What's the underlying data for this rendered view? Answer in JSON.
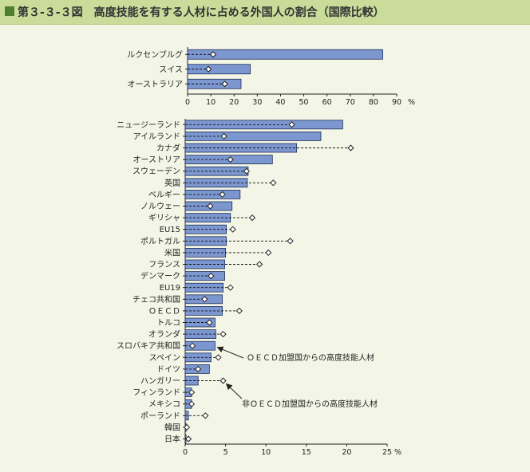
{
  "header": {
    "title": "第３-３-３図　高度技能を有する人材に占める外国人の割合（国際比較）"
  },
  "colors": {
    "bar_fill": "#7c97cf",
    "bar_stroke": "#1f2d5a",
    "header_bg": "#c9dc9a",
    "page_bg": "#f3f6e6"
  },
  "chart_data": [
    {
      "type": "bar",
      "orientation": "horizontal",
      "categories": [
        "ルクセンブルグ",
        "スイス",
        "オーストラリア"
      ],
      "series": [
        {
          "name": "ＯＥＣＤ加盟国からの高度技能人材",
          "values": [
            84,
            27,
            23
          ]
        },
        {
          "name": "非ＯＥＣＤ加盟国からの高度技能人材",
          "values": [
            11,
            9,
            16
          ]
        }
      ],
      "xlim": [
        0,
        90
      ],
      "xticks": [
        0,
        10,
        20,
        30,
        40,
        50,
        60,
        70,
        80,
        90
      ],
      "unit": "%"
    },
    {
      "type": "bar",
      "orientation": "horizontal",
      "categories": [
        "ニュージーランド",
        "アイルランド",
        "カナダ",
        "オーストリア",
        "スウェーデン",
        "英国",
        "ベルギー",
        "ノルウェー",
        "ギリシャ",
        "EU15",
        "ポルトガル",
        "米国",
        "フランス",
        "デンマーク",
        "EU19",
        "チェコ共和国",
        "ＯＥＣＤ",
        "トルコ",
        "オランダ",
        "スロバキア共和国",
        "スペイン",
        "ドイツ",
        "ハンガリー",
        "フィンランド",
        "メキシコ",
        "ポーランド",
        "韓国",
        "日本"
      ],
      "series": [
        {
          "name": "ＯＥＣＤ加盟国からの高度技能人材",
          "values": [
            19.5,
            16.8,
            13.8,
            10.8,
            7.8,
            7.7,
            6.8,
            5.8,
            5.6,
            5.1,
            5.1,
            5.0,
            4.9,
            4.9,
            4.7,
            4.6,
            4.6,
            3.7,
            3.8,
            3.7,
            3.2,
            3.0,
            1.6,
            0.8,
            0.8,
            0.4,
            0.1,
            0.1
          ]
        },
        {
          "name": "非ＯＥＣＤ加盟国からの高度技能人材",
          "values": [
            13.2,
            4.8,
            20.5,
            5.6,
            7.6,
            10.9,
            4.6,
            3.1,
            8.3,
            5.9,
            13.0,
            10.3,
            9.2,
            3.2,
            5.6,
            2.4,
            6.7,
            3.0,
            4.7,
            0.9,
            4.1,
            1.6,
            4.7,
            0.8,
            0.8,
            2.5,
            0.2,
            0.4
          ]
        }
      ],
      "xlim": [
        0,
        25
      ],
      "xticks": [
        0,
        5,
        10,
        15,
        20,
        25
      ],
      "unit": "%",
      "annotations": [
        "ＯＥＣＤ加盟国からの高度技能人材",
        "非ＯＥＣＤ加盟国からの高度技能人材"
      ]
    }
  ]
}
